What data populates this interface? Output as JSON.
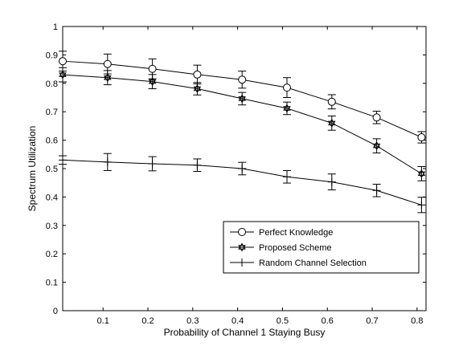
{
  "chart_data": {
    "type": "line",
    "xlabel": "Probability of Channel 1 Staying Busy",
    "ylabel": "Spectrum Utilization",
    "xlim": [
      0.01,
      0.82
    ],
    "ylim": [
      0,
      1
    ],
    "xticks": [
      0.1,
      0.2,
      0.3,
      0.4,
      0.5,
      0.6,
      0.7,
      0.8
    ],
    "xtick_labels": [
      "0.1",
      "0.2",
      "0.3",
      "0.4",
      "0.5",
      "0.6",
      "0.7",
      "0.8"
    ],
    "yticks": [
      0,
      0.1,
      0.2,
      0.3,
      0.4,
      0.5,
      0.6,
      0.7,
      0.8,
      0.9,
      1
    ],
    "ytick_labels": [
      "0",
      "0.1",
      "0.2",
      "0.3",
      "0.4",
      "0.5",
      "0.6",
      "0.7",
      "0.8",
      "0.9",
      "1"
    ],
    "grid": false,
    "legend_position": "bottom-right",
    "x": [
      0.01,
      0.11,
      0.21,
      0.31,
      0.41,
      0.51,
      0.61,
      0.71,
      0.81
    ],
    "series": [
      {
        "name": "Perfect Knowledge",
        "marker": "circle",
        "values": [
          0.878,
          0.868,
          0.851,
          0.831,
          0.813,
          0.785,
          0.735,
          0.68,
          0.61
        ],
        "errors": [
          0.035,
          0.035,
          0.035,
          0.033,
          0.03,
          0.035,
          0.025,
          0.022,
          0.02
        ]
      },
      {
        "name": "Proposed Scheme",
        "marker": "hexagram",
        "values": [
          0.83,
          0.82,
          0.806,
          0.781,
          0.746,
          0.712,
          0.66,
          0.58,
          0.482
        ],
        "errors": [
          0.025,
          0.025,
          0.025,
          0.022,
          0.022,
          0.022,
          0.025,
          0.025,
          0.025
        ]
      },
      {
        "name": "Random Channel Selection",
        "marker": "plus",
        "values": [
          0.53,
          0.523,
          0.517,
          0.512,
          0.5,
          0.471,
          0.453,
          0.423,
          0.372
        ],
        "errors": [
          0.015,
          0.03,
          0.025,
          0.022,
          0.022,
          0.022,
          0.028,
          0.022,
          0.027
        ]
      }
    ]
  }
}
